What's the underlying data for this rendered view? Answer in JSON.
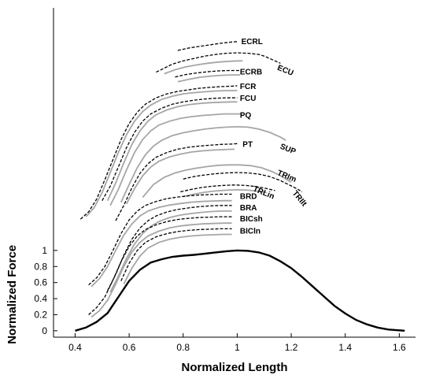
{
  "chart_data": {
    "type": "line",
    "xlabel": "Normalized Length",
    "ylabel": "Normalized Force",
    "xlim": [
      0.32,
      1.66
    ],
    "ylim": [
      -0.08,
      4.02
    ],
    "x_ticks": [
      0.4,
      0.6,
      0.8,
      1.0,
      1.2,
      1.4,
      1.6
    ],
    "x_tick_labels": [
      "0.4",
      "0.6",
      "0.8",
      "1",
      "1.2",
      "1.4",
      "1.6"
    ],
    "y_ticks": [
      0,
      0.2,
      0.4,
      0.6,
      0.8,
      1.0
    ],
    "y_tick_labels": [
      "0",
      "0.2",
      "0.4",
      "0.6",
      "0.8",
      "1"
    ],
    "grid": false,
    "colors": {
      "reference": "#000000",
      "gray_series": "#a6a6a6",
      "dashed_series": "#000000"
    },
    "reference_curve": {
      "x": [
        0.4,
        0.44,
        0.48,
        0.52,
        0.56,
        0.6,
        0.64,
        0.68,
        0.72,
        0.76,
        0.8,
        0.84,
        0.88,
        0.92,
        0.96,
        1.0,
        1.04,
        1.08,
        1.12,
        1.16,
        1.2,
        1.24,
        1.28,
        1.32,
        1.36,
        1.4,
        1.44,
        1.48,
        1.52,
        1.56,
        1.6,
        1.62
      ],
      "y": [
        0.0,
        0.04,
        0.11,
        0.22,
        0.42,
        0.62,
        0.76,
        0.85,
        0.89,
        0.92,
        0.935,
        0.945,
        0.96,
        0.975,
        0.99,
        1.0,
        0.995,
        0.975,
        0.935,
        0.865,
        0.78,
        0.67,
        0.55,
        0.43,
        0.31,
        0.215,
        0.135,
        0.08,
        0.04,
        0.015,
        0.005,
        0.0
      ]
    },
    "series": [
      {
        "name": "ECRL",
        "style": "dashed",
        "x": [
          0.78,
          0.82,
          0.86,
          0.9,
          0.94,
          0.98,
          1.0
        ],
        "y": [
          3.49,
          3.52,
          3.54,
          3.56,
          3.58,
          3.595,
          3.6
        ]
      },
      {
        "name": "ECU",
        "style": "dashed",
        "x": [
          0.7,
          0.73,
          0.76,
          0.8,
          0.84,
          0.88,
          0.92,
          0.96,
          1.0,
          1.04,
          1.08,
          1.1,
          1.12,
          1.14,
          1.16
        ],
        "y": [
          3.22,
          3.27,
          3.32,
          3.36,
          3.39,
          3.42,
          3.44,
          3.455,
          3.46,
          3.455,
          3.44,
          3.42,
          3.39,
          3.36,
          3.33
        ]
      },
      {
        "name": "",
        "style": "solid",
        "x": [
          0.73,
          0.77,
          0.81,
          0.85,
          0.89,
          0.93,
          0.97,
          1.0,
          1.02
        ],
        "y": [
          3.2,
          3.25,
          3.285,
          3.31,
          3.33,
          3.345,
          3.355,
          3.36,
          3.36
        ]
      },
      {
        "name": "ECRB",
        "style": "dashed",
        "x": [
          0.77,
          0.81,
          0.85,
          0.89,
          0.93,
          0.97,
          1.01
        ],
        "y": [
          3.16,
          3.19,
          3.21,
          3.225,
          3.235,
          3.24,
          3.24
        ]
      },
      {
        "name": "",
        "style": "solid",
        "x": [
          0.78,
          0.82,
          0.86,
          0.9,
          0.94,
          0.98,
          1.01
        ],
        "y": [
          3.1,
          3.13,
          3.155,
          3.17,
          3.18,
          3.185,
          3.185
        ]
      },
      {
        "name": "FCR",
        "style": "dashed",
        "x": [
          0.42,
          0.45,
          0.48,
          0.51,
          0.54,
          0.57,
          0.6,
          0.63,
          0.66,
          0.7,
          0.74,
          0.78,
          0.82,
          0.86,
          0.9,
          0.94,
          0.98,
          1.0
        ],
        "y": [
          1.39,
          1.48,
          1.64,
          1.88,
          2.13,
          2.38,
          2.58,
          2.72,
          2.82,
          2.9,
          2.95,
          2.98,
          3.0,
          3.02,
          3.03,
          3.04,
          3.045,
          3.05
        ]
      },
      {
        "name": "",
        "style": "solid",
        "x": [
          0.44,
          0.47,
          0.5,
          0.53,
          0.56,
          0.59,
          0.62,
          0.65,
          0.68,
          0.72,
          0.76,
          0.8,
          0.84,
          0.88,
          0.92,
          0.96,
          1.0
        ],
        "y": [
          1.42,
          1.53,
          1.72,
          1.97,
          2.22,
          2.44,
          2.61,
          2.73,
          2.81,
          2.88,
          2.92,
          2.95,
          2.965,
          2.975,
          2.985,
          2.99,
          2.99
        ]
      },
      {
        "name": "FCU",
        "style": "dashed",
        "x": [
          0.5,
          0.53,
          0.56,
          0.59,
          0.62,
          0.65,
          0.68,
          0.72,
          0.76,
          0.8,
          0.84,
          0.88,
          0.92,
          0.96,
          1.0
        ],
        "y": [
          1.62,
          1.8,
          2.04,
          2.28,
          2.47,
          2.61,
          2.7,
          2.77,
          2.82,
          2.85,
          2.87,
          2.885,
          2.895,
          2.9,
          2.9
        ]
      },
      {
        "name": "",
        "style": "solid",
        "x": [
          0.52,
          0.55,
          0.58,
          0.61,
          0.64,
          0.67,
          0.7,
          0.74,
          0.78,
          0.82,
          0.86,
          0.9,
          0.94,
          0.98,
          1.0
        ],
        "y": [
          1.62,
          1.84,
          2.09,
          2.32,
          2.49,
          2.61,
          2.69,
          2.75,
          2.79,
          2.815,
          2.83,
          2.84,
          2.845,
          2.85,
          2.85
        ]
      },
      {
        "name": "PQ",
        "style": "solid",
        "x": [
          0.53,
          0.56,
          0.59,
          0.62,
          0.65,
          0.68,
          0.71,
          0.75,
          0.79,
          0.83,
          0.87,
          0.91,
          0.95,
          0.99,
          1.02
        ],
        "y": [
          1.56,
          1.76,
          2.0,
          2.22,
          2.38,
          2.49,
          2.56,
          2.61,
          2.645,
          2.665,
          2.68,
          2.69,
          2.7,
          2.7,
          2.7
        ]
      },
      {
        "name": "SUP",
        "style": "solid",
        "x": [
          0.57,
          0.6,
          0.63,
          0.66,
          0.69,
          0.72,
          0.76,
          0.8,
          0.84,
          0.88,
          0.92,
          0.96,
          1.0,
          1.04,
          1.08,
          1.12,
          1.16,
          1.18
        ],
        "y": [
          1.6,
          1.82,
          2.03,
          2.19,
          2.3,
          2.37,
          2.43,
          2.465,
          2.49,
          2.51,
          2.525,
          2.535,
          2.54,
          2.535,
          2.51,
          2.47,
          2.41,
          2.37
        ]
      },
      {
        "name": "PT",
        "style": "dashed",
        "x": [
          0.55,
          0.58,
          0.61,
          0.64,
          0.67,
          0.7,
          0.74,
          0.78,
          0.82,
          0.86,
          0.9,
          0.94,
          0.98,
          1.0
        ],
        "y": [
          1.37,
          1.56,
          1.78,
          1.96,
          2.08,
          2.16,
          2.22,
          2.26,
          2.285,
          2.3,
          2.31,
          2.32,
          2.325,
          2.33
        ]
      },
      {
        "name": "",
        "style": "solid",
        "x": [
          0.59,
          0.62,
          0.65,
          0.68,
          0.71,
          0.75,
          0.79,
          0.83,
          0.87,
          0.91,
          0.95,
          0.99
        ],
        "y": [
          1.58,
          1.77,
          1.93,
          2.04,
          2.11,
          2.165,
          2.2,
          2.225,
          2.24,
          2.25,
          2.255,
          2.26
        ]
      },
      {
        "name": "TRIm",
        "style": "solid",
        "x": [
          0.65,
          0.69,
          0.73,
          0.77,
          0.81,
          0.85,
          0.89,
          0.93,
          0.97,
          1.01,
          1.05,
          1.09,
          1.13,
          1.16,
          1.18,
          1.2
        ],
        "y": [
          1.66,
          1.82,
          1.91,
          1.965,
          2.0,
          2.025,
          2.045,
          2.06,
          2.065,
          2.065,
          2.055,
          2.03,
          1.98,
          1.93,
          1.89,
          1.85
        ]
      },
      {
        "name": "TRIlt",
        "style": "dashed",
        "x": [
          0.8,
          0.84,
          0.88,
          0.92,
          0.96,
          1.0,
          1.04,
          1.08,
          1.12,
          1.16,
          1.19,
          1.22,
          1.24
        ],
        "y": [
          1.89,
          1.92,
          1.94,
          1.955,
          1.965,
          1.97,
          1.965,
          1.95,
          1.92,
          1.87,
          1.82,
          1.77,
          1.73
        ]
      },
      {
        "name": "TRLin",
        "style": "dashed",
        "x": [
          0.79,
          0.83,
          0.87,
          0.91,
          0.95,
          0.99,
          1.03,
          1.07,
          1.11,
          1.14
        ],
        "y": [
          1.73,
          1.76,
          1.785,
          1.8,
          1.81,
          1.815,
          1.81,
          1.795,
          1.77,
          1.745
        ]
      },
      {
        "name": "",
        "style": "solid",
        "x": [
          0.8,
          0.84,
          0.88,
          0.92,
          0.96,
          1.0,
          1.04,
          1.08,
          1.11
        ],
        "y": [
          1.67,
          1.7,
          1.725,
          1.74,
          1.75,
          1.755,
          1.75,
          1.735,
          1.72
        ]
      },
      {
        "name": "BRD",
        "style": "dashed",
        "x": [
          0.45,
          0.48,
          0.51,
          0.54,
          0.57,
          0.6,
          0.63,
          0.66,
          0.7,
          0.74,
          0.78,
          0.82,
          0.86,
          0.9,
          0.94,
          0.98
        ],
        "y": [
          0.57,
          0.66,
          0.8,
          1.0,
          1.21,
          1.38,
          1.49,
          1.56,
          1.61,
          1.645,
          1.665,
          1.68,
          1.69,
          1.695,
          1.7,
          1.7
        ]
      },
      {
        "name": "",
        "style": "solid",
        "x": [
          0.46,
          0.49,
          0.52,
          0.55,
          0.58,
          0.61,
          0.64,
          0.67,
          0.71,
          0.75,
          0.79,
          0.83,
          0.87,
          0.91,
          0.95,
          0.98
        ],
        "y": [
          0.55,
          0.65,
          0.8,
          1.0,
          1.19,
          1.33,
          1.43,
          1.49,
          1.535,
          1.565,
          1.585,
          1.6,
          1.61,
          1.615,
          1.62,
          1.62
        ]
      },
      {
        "name": "BRA",
        "style": "dashed",
        "x": [
          0.52,
          0.55,
          0.58,
          0.61,
          0.64,
          0.67,
          0.7,
          0.74,
          0.78,
          0.82,
          0.86,
          0.9,
          0.94,
          0.98
        ],
        "y": [
          0.5,
          0.7,
          0.94,
          1.14,
          1.28,
          1.37,
          1.43,
          1.48,
          1.51,
          1.53,
          1.545,
          1.555,
          1.56,
          1.56
        ]
      },
      {
        "name": "",
        "style": "solid",
        "x": [
          0.53,
          0.56,
          0.59,
          0.62,
          0.65,
          0.68,
          0.71,
          0.75,
          0.79,
          0.83,
          0.87,
          0.91,
          0.95,
          0.98
        ],
        "y": [
          0.48,
          0.68,
          0.9,
          1.08,
          1.21,
          1.3,
          1.36,
          1.41,
          1.44,
          1.46,
          1.475,
          1.485,
          1.49,
          1.49
        ]
      },
      {
        "name": "BICsh",
        "style": "dashed",
        "x": [
          0.45,
          0.48,
          0.51,
          0.54,
          0.57,
          0.6,
          0.63,
          0.66,
          0.7,
          0.74,
          0.78,
          0.82,
          0.86,
          0.9,
          0.94,
          0.98
        ],
        "y": [
          0.2,
          0.29,
          0.42,
          0.63,
          0.86,
          1.05,
          1.18,
          1.26,
          1.32,
          1.36,
          1.385,
          1.4,
          1.41,
          1.415,
          1.42,
          1.42
        ]
      },
      {
        "name": "",
        "style": "solid",
        "x": [
          0.46,
          0.49,
          0.52,
          0.55,
          0.58,
          0.61,
          0.64,
          0.67,
          0.71,
          0.75,
          0.79,
          0.83,
          0.87,
          0.91,
          0.95,
          0.98
        ],
        "y": [
          0.17,
          0.25,
          0.38,
          0.58,
          0.8,
          0.98,
          1.1,
          1.18,
          1.24,
          1.28,
          1.305,
          1.32,
          1.33,
          1.335,
          1.34,
          1.34
        ]
      },
      {
        "name": "BICln",
        "style": "dashed",
        "x": [
          0.57,
          0.6,
          0.63,
          0.66,
          0.7,
          0.74,
          0.78,
          0.82,
          0.86,
          0.9,
          0.94,
          0.98
        ],
        "y": [
          0.62,
          0.84,
          1.0,
          1.1,
          1.17,
          1.21,
          1.235,
          1.25,
          1.26,
          1.265,
          1.27,
          1.27
        ]
      },
      {
        "name": "",
        "style": "solid",
        "x": [
          0.58,
          0.61,
          0.64,
          0.67,
          0.71,
          0.75,
          0.79,
          0.83,
          0.87,
          0.91,
          0.95,
          0.98
        ],
        "y": [
          0.58,
          0.78,
          0.93,
          1.03,
          1.1,
          1.14,
          1.165,
          1.18,
          1.19,
          1.195,
          1.2,
          1.2
        ]
      }
    ],
    "labels": [
      {
        "text": "ECRL",
        "x": 1.015,
        "y": 3.6,
        "rotate": 0
      },
      {
        "text": "ECU",
        "x": 1.15,
        "y": 3.28,
        "rotate": 22
      },
      {
        "text": "ECRB",
        "x": 1.01,
        "y": 3.22,
        "rotate": 0
      },
      {
        "text": "FCR",
        "x": 1.01,
        "y": 3.04,
        "rotate": 0
      },
      {
        "text": "FCU",
        "x": 1.01,
        "y": 2.89,
        "rotate": 0
      },
      {
        "text": "PQ",
        "x": 1.01,
        "y": 2.68,
        "rotate": 0
      },
      {
        "text": "PT",
        "x": 1.02,
        "y": 2.32,
        "rotate": 0
      },
      {
        "text": "SUP",
        "x": 1.16,
        "y": 2.3,
        "rotate": 22
      },
      {
        "text": "TRIm",
        "x": 1.15,
        "y": 1.97,
        "rotate": 22
      },
      {
        "text": "TRLin",
        "x": 1.06,
        "y": 1.77,
        "rotate": 22
      },
      {
        "text": "TRIlt",
        "x": 1.21,
        "y": 1.73,
        "rotate": 50
      },
      {
        "text": "BRD",
        "x": 1.01,
        "y": 1.67,
        "rotate": 0
      },
      {
        "text": "BRA",
        "x": 1.01,
        "y": 1.53,
        "rotate": 0
      },
      {
        "text": "BICsh",
        "x": 1.01,
        "y": 1.39,
        "rotate": 0
      },
      {
        "text": "BICln",
        "x": 1.01,
        "y": 1.24,
        "rotate": 0
      }
    ]
  }
}
